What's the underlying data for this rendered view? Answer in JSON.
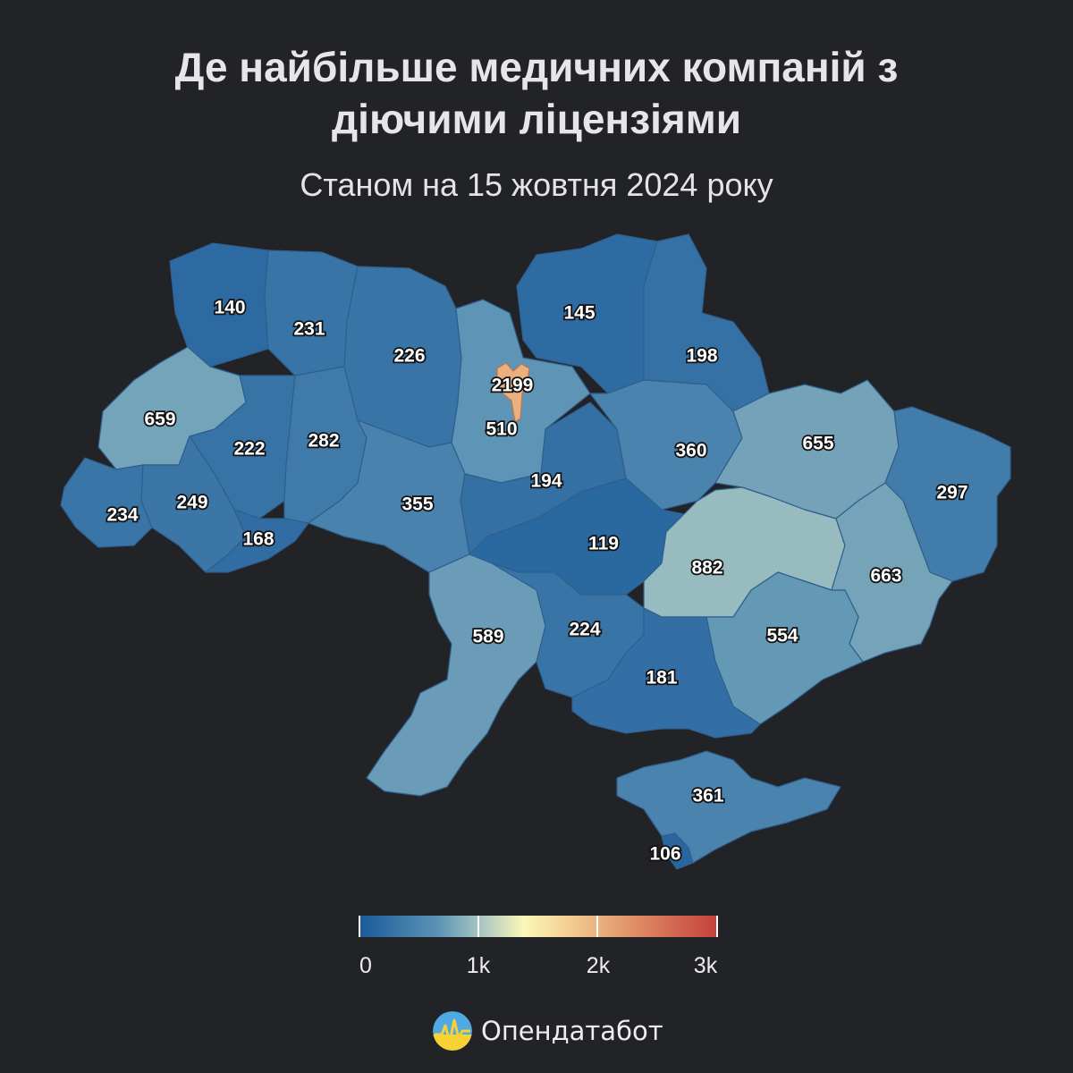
{
  "title_line1": "Де найбільше медичних компаній з",
  "title_line2": "діючими ліцензіями",
  "subtitle": "Станом на 15 жовтня 2024 року",
  "legend": {
    "ticks": [
      "0",
      "1k",
      "2k",
      "3k"
    ],
    "range": [
      0,
      3000
    ],
    "colors": [
      "#1b5a9a",
      "#5c93b5",
      "#a9c7c2",
      "#fbf7b8",
      "#f2c98f",
      "#de8a64",
      "#c4403b"
    ]
  },
  "brand": "Опендатабот",
  "chart_data": {
    "type": "choropleth",
    "values": [
      {
        "value": 140
      },
      {
        "value": 231
      },
      {
        "value": 226
      },
      {
        "value": 145
      },
      {
        "value": 198
      },
      {
        "value": 2199
      },
      {
        "value": 510
      },
      {
        "value": 659
      },
      {
        "value": 222
      },
      {
        "value": 282
      },
      {
        "value": 360
      },
      {
        "value": 655
      },
      {
        "value": 297
      },
      {
        "value": 194
      },
      {
        "value": 234
      },
      {
        "value": 249
      },
      {
        "value": 355
      },
      {
        "value": 168
      },
      {
        "value": 119
      },
      {
        "value": 882
      },
      {
        "value": 663
      },
      {
        "value": 589
      },
      {
        "value": 224
      },
      {
        "value": 554
      },
      {
        "value": 181
      },
      {
        "value": 361
      },
      {
        "value": 106
      }
    ]
  }
}
